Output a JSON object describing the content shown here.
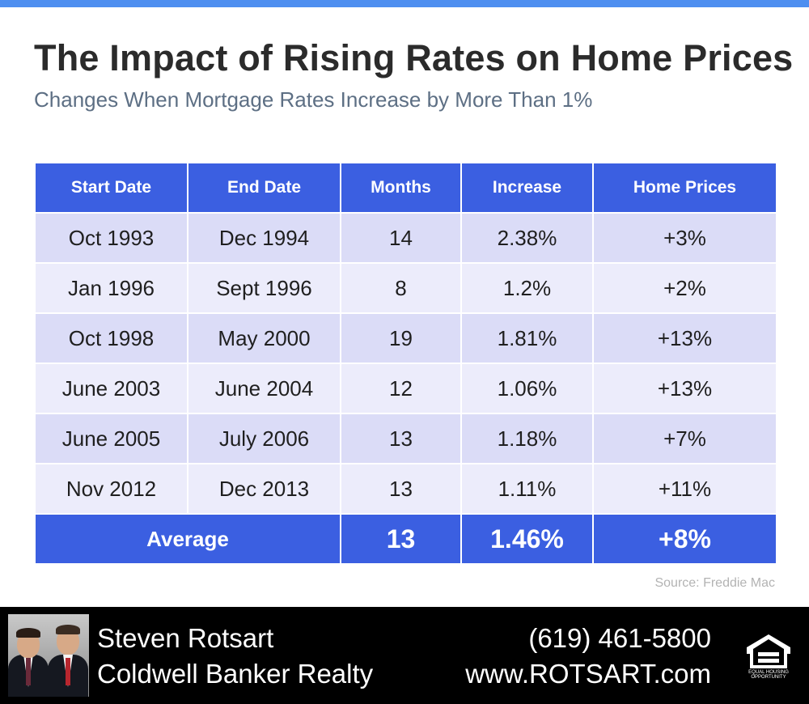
{
  "header": {
    "title": "The Impact of Rising Rates on Home Prices",
    "subtitle": "Changes When Mortgage Rates Increase by More Than 1%"
  },
  "chart_data": {
    "type": "table",
    "title": "The Impact of Rising Rates on Home Prices",
    "subtitle": "Changes When Mortgage Rates Increase by More Than 1%",
    "columns": [
      "Start Date",
      "End Date",
      "Months",
      "Increase",
      "Home Prices"
    ],
    "rows": [
      [
        "Oct 1993",
        "Dec 1994",
        "14",
        "2.38%",
        "+3%"
      ],
      [
        "Jan 1996",
        "Sept 1996",
        "8",
        "1.2%",
        "+2%"
      ],
      [
        "Oct 1998",
        "May 2000",
        "19",
        "1.81%",
        "+13%"
      ],
      [
        "June 2003",
        "June 2004",
        "12",
        "1.06%",
        "+13%"
      ],
      [
        "June 2005",
        "July 2006",
        "13",
        "1.18%",
        "+7%"
      ],
      [
        "Nov 2012",
        "Dec 2013",
        "13",
        "1.11%",
        "+11%"
      ]
    ],
    "summary": {
      "label": "Average",
      "months": "13",
      "increase": "1.46%",
      "home_prices": "+8%"
    },
    "source": "Source: Freddie Mac"
  },
  "footer": {
    "agent_name": "Steven Rotsart",
    "company": "Coldwell Banker Realty",
    "phone": "(619) 461-5800",
    "website": "www.ROTSART.com",
    "logo_icon": "equal-housing-opportunity-icon",
    "logo_text": "EQUAL HOUSING OPPORTUNITY"
  },
  "colors": {
    "accent_bar": "#4e8ff0",
    "header_fill": "#3b5fe1",
    "row_odd": "#dbdcf7",
    "row_even": "#ececfb",
    "footer_bg": "#000000",
    "title_text": "#2b2b2b",
    "subtitle_text": "#5d6f84"
  }
}
